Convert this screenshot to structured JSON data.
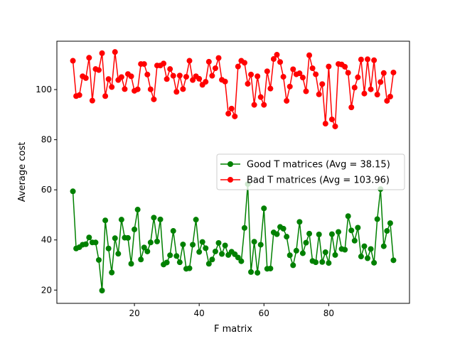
{
  "chart_data": {
    "type": "line",
    "title": "",
    "xlabel": "F matrix",
    "ylabel": "Average cost",
    "xlim": [
      -3.95,
      104.95
    ],
    "ylim": [
      14.7,
      119.3
    ],
    "x_ticks": [
      20,
      40,
      60,
      80
    ],
    "y_ticks": [
      20,
      40,
      60,
      80,
      100
    ],
    "grid": false,
    "legend_position": "center-right",
    "x": [
      1,
      2,
      3,
      4,
      5,
      6,
      7,
      8,
      9,
      10,
      11,
      12,
      13,
      14,
      15,
      16,
      17,
      18,
      19,
      20,
      21,
      22,
      23,
      24,
      25,
      26,
      27,
      28,
      29,
      30,
      31,
      32,
      33,
      34,
      35,
      36,
      37,
      38,
      39,
      40,
      41,
      42,
      43,
      44,
      45,
      46,
      47,
      48,
      49,
      50,
      51,
      52,
      53,
      54,
      55,
      56,
      57,
      58,
      59,
      60,
      61,
      62,
      63,
      64,
      65,
      66,
      67,
      68,
      69,
      70,
      71,
      72,
      73,
      74,
      75,
      76,
      77,
      78,
      79,
      80,
      81,
      82,
      83,
      84,
      85,
      86,
      87,
      88,
      89,
      90,
      91,
      92,
      93,
      94,
      95,
      96,
      97,
      98,
      99,
      100
    ],
    "series": [
      {
        "name": "Good T matrices (Avg = 38.15)",
        "color": "#008000",
        "marker": "circle",
        "values": [
          59.4,
          36.6,
          37.1,
          38.1,
          38.3,
          41.0,
          39.0,
          39.0,
          32.0,
          19.8,
          47.8,
          36.6,
          27.0,
          40.7,
          34.5,
          48.1,
          40.9,
          40.8,
          30.5,
          44.2,
          52.1,
          32.2,
          37.0,
          35.4,
          39.0,
          48.9,
          39.4,
          48.2,
          30.2,
          31.0,
          33.9,
          43.6,
          33.6,
          31.1,
          38.2,
          28.5,
          28.7,
          38.1,
          48.1,
          35.2,
          39.2,
          36.7,
          30.5,
          32.2,
          35.4,
          38.8,
          34.4,
          37.8,
          34.0,
          35.3,
          34.3,
          33.0,
          31.5,
          44.8,
          62.3,
          27.2,
          39.3,
          26.9,
          38.1,
          52.6,
          28.5,
          28.6,
          43.0,
          42.3,
          45.2,
          44.5,
          41.3,
          33.9,
          29.9,
          35.7,
          47.2,
          34.7,
          38.9,
          42.5,
          31.6,
          31.1,
          42.2,
          31.2,
          35.1,
          30.8,
          42.3,
          34.0,
          43.2,
          36.4,
          36.1,
          49.5,
          43.8,
          39.7,
          44.9,
          33.4,
          37.5,
          32.7,
          36.4,
          30.9,
          48.3,
          60.3,
          37.5,
          43.6,
          46.7,
          31.9
        ]
      },
      {
        "name": "Bad T matrices (Avg = 103.96)",
        "color": "#ff0000",
        "marker": "circle",
        "values": [
          111.5,
          97.4,
          97.8,
          105.3,
          104.6,
          112.7,
          95.6,
          108.2,
          107.8,
          114.5,
          97.4,
          104.2,
          101.0,
          115.0,
          103.8,
          105.0,
          100.2,
          106.2,
          105.3,
          99.5,
          100.1,
          110.2,
          110.2,
          106.0,
          100.1,
          96.1,
          109.6,
          109.6,
          110.4,
          104.2,
          108.2,
          105.5,
          99.1,
          105.6,
          100.2,
          105.1,
          111.5,
          103.8,
          105.3,
          104.3,
          101.9,
          103.1,
          111.1,
          105.5,
          108.5,
          112.6,
          103.9,
          103.2,
          90.4,
          92.4,
          89.3,
          109.2,
          111.5,
          110.7,
          102.3,
          106.0,
          93.9,
          105.3,
          97.0,
          93.9,
          107.3,
          100.4,
          112.2,
          113.9,
          111.0,
          105.1,
          95.5,
          101.2,
          108.1,
          106.1,
          106.5,
          104.8,
          99.3,
          113.7,
          108.5,
          106.1,
          98.1,
          102.2,
          86.4,
          109.2,
          88.1,
          85.3,
          110.2,
          110.0,
          109.1,
          106.7,
          92.9,
          100.8,
          104.9,
          112.0,
          98.4,
          112.1,
          100.1,
          111.7,
          98.0,
          103.0,
          106.6,
          95.5,
          97.2,
          106.8
        ]
      }
    ]
  }
}
